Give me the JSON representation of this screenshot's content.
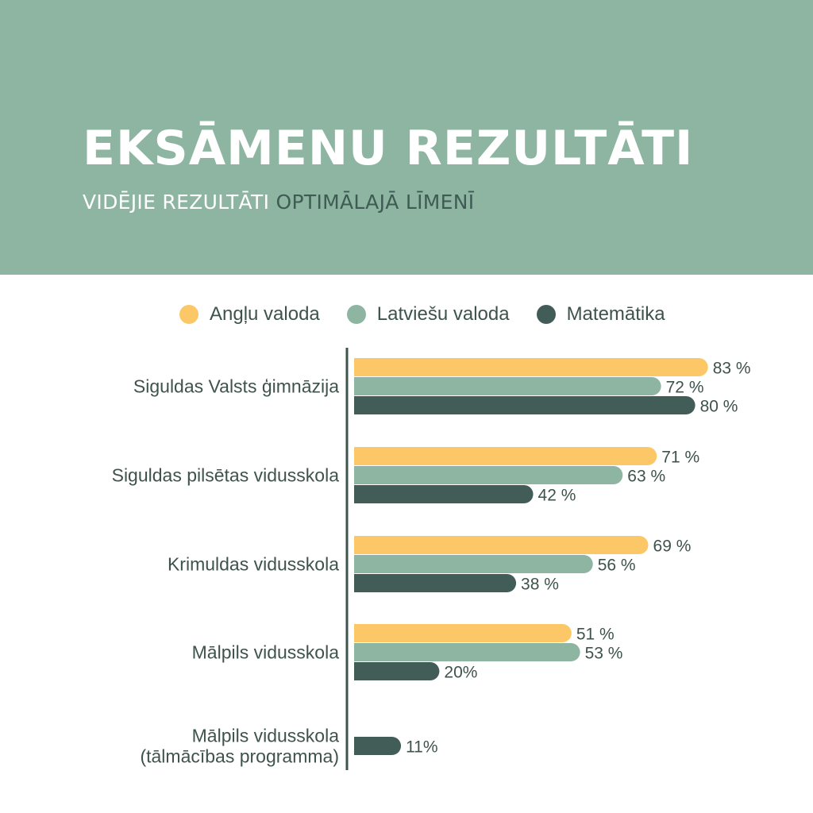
{
  "title": "EKSĀMENU REZULTĀTI",
  "subtitle": {
    "part1": "VIDĒJIE REZULTĀTI",
    "part2": "OPTIMĀLAJĀ LĪMENĪ"
  },
  "colors": {
    "header_bg": "#8db5a2",
    "subtitle_accent": "#3e5c53",
    "axis": "#3e534b",
    "text": "#3e534b"
  },
  "chart_data": {
    "type": "bar",
    "orientation": "horizontal",
    "value_max": 100,
    "categories": [
      {
        "label": [
          "Siguldas Valsts ģimnāzija"
        ]
      },
      {
        "label": [
          "Siguldas pilsētas vidusskola"
        ]
      },
      {
        "label": [
          "Krimuldas vidusskola"
        ]
      },
      {
        "label": [
          "Mālpils vidusskola"
        ]
      },
      {
        "label": [
          "Mālpils vidusskola",
          "(tālmācības programma)"
        ]
      }
    ],
    "series": [
      {
        "name": "Angļu valoda",
        "color": "#fbc767",
        "values": [
          83,
          71,
          69,
          51,
          null
        ],
        "labels": [
          "83 %",
          "71 %",
          "69 %",
          "51 %",
          null
        ]
      },
      {
        "name": "Latviešu valoda",
        "color": "#8db5a2",
        "values": [
          72,
          63,
          56,
          53,
          null
        ],
        "labels": [
          "72 %",
          "63 %",
          "56 %",
          "53 %",
          null
        ]
      },
      {
        "name": "Matemātika",
        "color": "#425d57",
        "values": [
          80,
          42,
          38,
          20,
          11
        ],
        "labels": [
          "80 %",
          "42 %",
          "38 %",
          "20%",
          "11%"
        ]
      }
    ],
    "legend_position": "top"
  }
}
